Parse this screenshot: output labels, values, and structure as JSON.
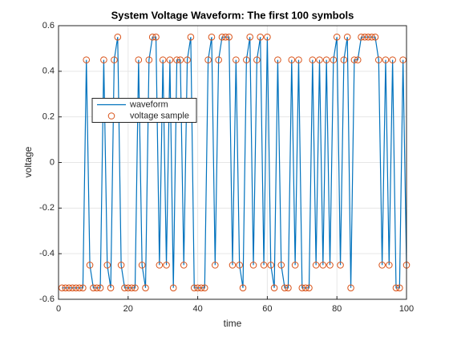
{
  "chart_data": {
    "type": "line",
    "title": "System Voltage Waveform: The first 100 symbols",
    "x_label": "time",
    "y_label": "voltage",
    "x": [
      1,
      2,
      3,
      4,
      5,
      6,
      7,
      8,
      9,
      10,
      11,
      12,
      13,
      14,
      15,
      16,
      17,
      18,
      19,
      20,
      21,
      22,
      23,
      24,
      25,
      26,
      27,
      28,
      29,
      30,
      31,
      32,
      33,
      34,
      35,
      36,
      37,
      38,
      39,
      40,
      41,
      42,
      43,
      44,
      45,
      46,
      47,
      48,
      49,
      50,
      51,
      52,
      53,
      54,
      55,
      56,
      57,
      58,
      59,
      60,
      61,
      62,
      63,
      64,
      65,
      66,
      67,
      68,
      69,
      70,
      71,
      72,
      73,
      74,
      75,
      76,
      77,
      78,
      79,
      80,
      81,
      82,
      83,
      84,
      85,
      86,
      87,
      88,
      89,
      90,
      91,
      92,
      93,
      94,
      95,
      96,
      97,
      98,
      99,
      100
    ],
    "series": [
      {
        "name": "waveform",
        "color": "#0072bd",
        "marker": "none",
        "values": [
          -0.55,
          -0.55,
          -0.55,
          -0.55,
          -0.55,
          -0.55,
          -0.55,
          0.45,
          -0.45,
          -0.55,
          -0.55,
          -0.55,
          0.45,
          -0.45,
          -0.55,
          0.45,
          0.55,
          -0.45,
          -0.55,
          -0.55,
          -0.55,
          -0.55,
          0.45,
          -0.45,
          -0.55,
          0.45,
          0.55,
          0.55,
          -0.45,
          0.45,
          -0.45,
          0.45,
          -0.55,
          0.45,
          0.45,
          -0.45,
          0.45,
          0.55,
          -0.55,
          -0.55,
          -0.55,
          -0.55,
          0.45,
          0.55,
          -0.45,
          0.45,
          0.55,
          0.55,
          0.55,
          -0.45,
          0.45,
          -0.45,
          -0.55,
          0.45,
          0.55,
          -0.45,
          0.45,
          0.55,
          -0.45,
          0.55,
          -0.45,
          -0.55,
          0.45,
          -0.45,
          -0.55,
          -0.55,
          0.45,
          -0.45,
          0.45,
          -0.55,
          -0.55,
          -0.55,
          0.45,
          -0.45,
          0.45,
          -0.45,
          0.45,
          -0.45,
          0.45,
          0.55,
          -0.45,
          0.45,
          0.55,
          -0.55,
          0.45,
          0.45,
          0.55,
          0.55,
          0.55,
          0.55,
          0.55,
          0.45,
          -0.45,
          0.45,
          -0.45,
          0.45,
          -0.55,
          -0.55,
          0.45,
          -0.45
        ]
      },
      {
        "name": "voltage sample",
        "color": "#d95319",
        "marker": "circle",
        "values": [
          -0.55,
          -0.55,
          -0.55,
          -0.55,
          -0.55,
          -0.55,
          -0.55,
          0.45,
          -0.45,
          -0.55,
          -0.55,
          -0.55,
          0.45,
          -0.45,
          -0.55,
          0.45,
          0.55,
          -0.45,
          -0.55,
          -0.55,
          -0.55,
          -0.55,
          0.45,
          -0.45,
          -0.55,
          0.45,
          0.55,
          0.55,
          -0.45,
          0.45,
          -0.45,
          0.45,
          -0.55,
          0.45,
          0.45,
          -0.45,
          0.45,
          0.55,
          -0.55,
          -0.55,
          -0.55,
          -0.55,
          0.45,
          0.55,
          -0.45,
          0.45,
          0.55,
          0.55,
          0.55,
          -0.45,
          0.45,
          -0.45,
          -0.55,
          0.45,
          0.55,
          -0.45,
          0.45,
          0.55,
          -0.45,
          0.55,
          -0.45,
          -0.55,
          0.45,
          -0.45,
          -0.55,
          -0.55,
          0.45,
          -0.45,
          0.45,
          -0.55,
          -0.55,
          -0.55,
          0.45,
          -0.45,
          0.45,
          -0.45,
          0.45,
          -0.45,
          0.45,
          0.55,
          -0.45,
          0.45,
          0.55,
          -0.55,
          0.45,
          0.45,
          0.55,
          0.55,
          0.55,
          0.55,
          0.55,
          0.45,
          -0.45,
          0.45,
          -0.45,
          0.45,
          -0.55,
          -0.55,
          0.45,
          -0.45
        ]
      }
    ],
    "xlim": [
      0,
      100
    ],
    "xticks": [
      0,
      20,
      40,
      60,
      80,
      100
    ],
    "ylim": [
      -0.6,
      0.6
    ],
    "yticks": [
      -0.6,
      -0.4,
      -0.2,
      0,
      0.2,
      0.4,
      0.6
    ],
    "grid": true,
    "legend_location": "west"
  }
}
